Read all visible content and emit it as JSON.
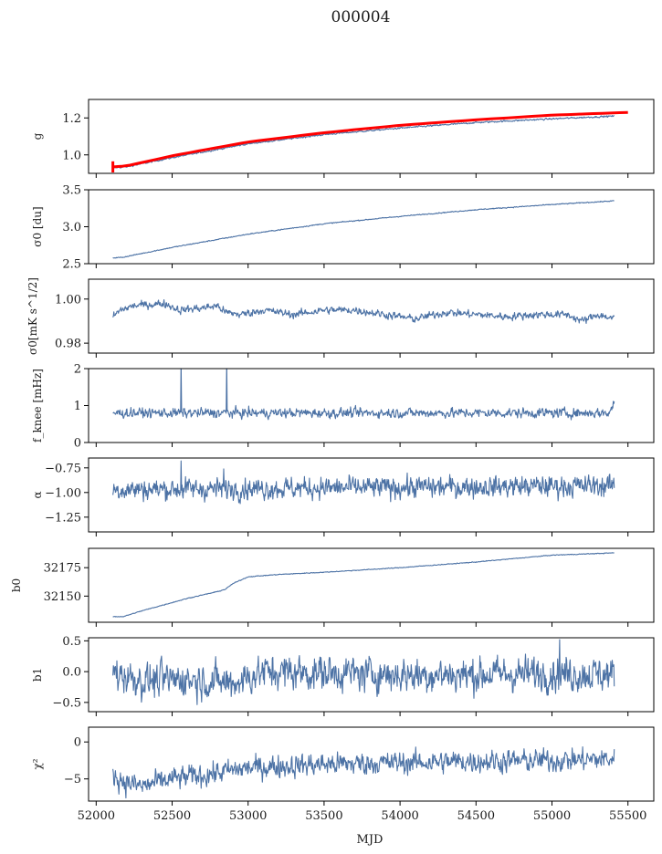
{
  "chart_data": {
    "type": "line",
    "title": "000004",
    "xlabel": "MJD",
    "xlim": [
      51950,
      55670
    ],
    "xticks": [
      52000,
      52500,
      53000,
      53500,
      54000,
      54500,
      55000,
      55500
    ],
    "xtick_labels": [
      "52000",
      "52500",
      "53000",
      "53500",
      "54000",
      "54500",
      "55000",
      "55500"
    ],
    "x_range_data": [
      52110,
      55410
    ],
    "grid": false,
    "colors": {
      "series": "#4c72a5",
      "model": "#ff0000"
    },
    "panels": [
      {
        "name": "gain",
        "ylabel": "g",
        "ylim": [
          0.9,
          1.3
        ],
        "yticks": [
          1.0,
          1.2
        ],
        "ytick_labels": [
          "1.0",
          "1.2"
        ],
        "series": [
          {
            "name": "g",
            "color": "#4c72a5",
            "points": [
              [
                52110,
                0.93
              ],
              [
                52200,
                0.935
              ],
              [
                52500,
                0.985
              ],
              [
                53000,
                1.06
              ],
              [
                53500,
                1.11
              ],
              [
                54000,
                1.145
              ],
              [
                54500,
                1.175
              ],
              [
                55000,
                1.195
              ],
              [
                55410,
                1.21
              ]
            ],
            "noise": 0.002
          },
          {
            "name": "model fit",
            "color": "#ff0000",
            "points": [
              [
                52110,
                0.935
              ],
              [
                52200,
                0.94
              ],
              [
                52500,
                0.995
              ],
              [
                53000,
                1.07
              ],
              [
                53500,
                1.12
              ],
              [
                54000,
                1.16
              ],
              [
                54500,
                1.19
              ],
              [
                55000,
                1.215
              ],
              [
                55500,
                1.23
              ]
            ],
            "noise": 0,
            "errorbar_at": 52110,
            "errorbar": 0.03
          }
        ]
      },
      {
        "name": "sigma0-du",
        "ylabel": "σ0 [du]",
        "ylim": [
          2.5,
          3.5
        ],
        "yticks": [
          2.5,
          3.0,
          3.5
        ],
        "ytick_labels": [
          "2.5",
          "3.0",
          "3.5"
        ],
        "series": [
          {
            "name": "sigma0_du",
            "color": "#4c72a5",
            "points": [
              [
                52110,
                2.58
              ],
              [
                52170,
                2.585
              ],
              [
                52500,
                2.72
              ],
              [
                53000,
                2.9
              ],
              [
                53500,
                3.04
              ],
              [
                54000,
                3.14
              ],
              [
                54500,
                3.23
              ],
              [
                55000,
                3.3
              ],
              [
                55410,
                3.35
              ]
            ],
            "noise": 0.003
          }
        ]
      },
      {
        "name": "sigma0-mk",
        "ylabel": "σ0[mK s^1/2]",
        "ylim": [
          0.9755,
          1.009
        ],
        "yticks": [
          0.98,
          1.0
        ],
        "ytick_labels": [
          "0.98",
          "1.00"
        ],
        "series": [
          {
            "name": "sigma0_mK",
            "color": "#4c72a5",
            "points": [
              [
                52110,
                0.992
              ],
              [
                52160,
                0.995
              ],
              [
                52250,
                0.997
              ],
              [
                52450,
                0.998
              ],
              [
                52550,
                0.995
              ],
              [
                52700,
                0.996
              ],
              [
                52800,
                0.997
              ],
              [
                52850,
                0.994
              ],
              [
                52950,
                0.993
              ],
              [
                53100,
                0.995
              ],
              [
                53300,
                0.993
              ],
              [
                53500,
                0.995
              ],
              [
                53700,
                0.995
              ],
              [
                53900,
                0.993
              ],
              [
                54100,
                0.991
              ],
              [
                54300,
                0.994
              ],
              [
                54500,
                0.993
              ],
              [
                54700,
                0.992
              ],
              [
                54900,
                0.993
              ],
              [
                55100,
                0.993
              ],
              [
                55200,
                0.99
              ],
              [
                55300,
                0.993
              ],
              [
                55410,
                0.991
              ]
            ],
            "noise": 0.0008
          }
        ]
      },
      {
        "name": "fknee",
        "ylabel": "f_knee [mHz]",
        "ylim": [
          0,
          2
        ],
        "yticks": [
          0,
          1,
          2
        ],
        "ytick_labels": [
          "0",
          "1",
          "2"
        ],
        "series": [
          {
            "name": "fknee",
            "color": "#4c72a5",
            "points": [
              [
                52110,
                0.8
              ],
              [
                55380,
                0.8
              ],
              [
                55410,
                1.1
              ]
            ],
            "noise": 0.06,
            "spikes": [
              [
                52560,
                2.2
              ],
              [
                52860,
                2.2
              ]
            ]
          }
        ]
      },
      {
        "name": "alpha",
        "ylabel": "α",
        "ylim": [
          -1.4,
          -0.65
        ],
        "yticks": [
          -1.25,
          -1.0,
          -0.75
        ],
        "ytick_labels": [
          "−1.25",
          "−1.00",
          "−0.75"
        ],
        "series": [
          {
            "name": "alpha",
            "color": "#4c72a5",
            "points": [
              [
                52110,
                -0.97
              ],
              [
                55410,
                -0.93
              ]
            ],
            "noise": 0.05,
            "spikes": [
              [
                52560,
                -0.68
              ],
              [
                52840,
                -0.76
              ]
            ]
          }
        ]
      },
      {
        "name": "b0",
        "ylabel": "b0",
        "ylim": [
          32127,
          32192
        ],
        "yticks": [
          32150,
          32175
        ],
        "ytick_labels": [
          "32150",
          "32175"
        ],
        "series": [
          {
            "name": "b0",
            "color": "#4c72a5",
            "points": [
              [
                52110,
                32132
              ],
              [
                52180,
                32132
              ],
              [
                52300,
                32137
              ],
              [
                52600,
                32148
              ],
              [
                52800,
                32154
              ],
              [
                52850,
                32156
              ],
              [
                52900,
                32161
              ],
              [
                53000,
                32167
              ],
              [
                53200,
                32169
              ],
              [
                53500,
                32171
              ],
              [
                54000,
                32175
              ],
              [
                54500,
                32180
              ],
              [
                55000,
                32186
              ],
              [
                55410,
                32188
              ]
            ],
            "noise": 0.15
          }
        ]
      },
      {
        "name": "b1",
        "ylabel": "b1",
        "ylim": [
          -0.65,
          0.55
        ],
        "yticks": [
          -0.5,
          0.0,
          0.5
        ],
        "ytick_labels": [
          "−0.5",
          "0.0",
          "0.5"
        ],
        "series": [
          {
            "name": "b1",
            "color": "#4c72a5",
            "points": [
              [
                52110,
                0.0
              ],
              [
                52300,
                -0.15
              ],
              [
                52600,
                -0.12
              ],
              [
                52900,
                -0.18
              ],
              [
                53100,
                0.0
              ],
              [
                53500,
                -0.02
              ],
              [
                54000,
                -0.05
              ],
              [
                54500,
                -0.05
              ],
              [
                55000,
                -0.03
              ],
              [
                55410,
                -0.05
              ]
            ],
            "noise": 0.13,
            "spikes": [
              [
                55050,
                0.52
              ]
            ]
          }
        ]
      },
      {
        "name": "chi2",
        "ylabel": "χ²",
        "ylim": [
          -8,
          2
        ],
        "yticks": [
          -5,
          0
        ],
        "ytick_labels": [
          "−5",
          "0"
        ],
        "series": [
          {
            "name": "chi2",
            "color": "#4c72a5",
            "points": [
              [
                52110,
                -4.5
              ],
              [
                52200,
                -5.5
              ],
              [
                52300,
                -6.0
              ],
              [
                52500,
                -5.0
              ],
              [
                52700,
                -4.5
              ],
              [
                53000,
                -3.5
              ],
              [
                53500,
                -3.0
              ],
              [
                54000,
                -2.8
              ],
              [
                54500,
                -2.6
              ],
              [
                55000,
                -2.5
              ],
              [
                55410,
                -2.3
              ]
            ],
            "noise": 0.7
          }
        ]
      }
    ]
  }
}
